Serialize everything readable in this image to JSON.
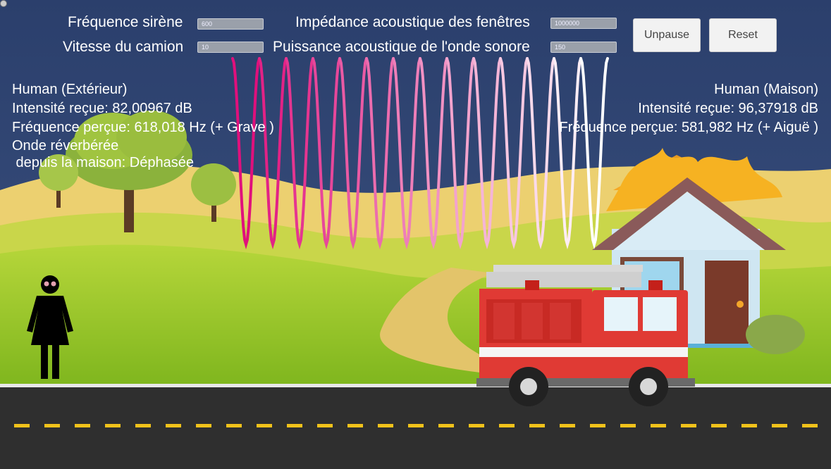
{
  "controls": {
    "siren_frequency": {
      "label": "Fréquence sirène",
      "value": "600"
    },
    "truck_speed": {
      "label": "Vitesse du camion",
      "value": "10"
    },
    "window_impedance": {
      "label": "Impédance acoustique des fenêtres",
      "value": "1000000"
    },
    "wave_power": {
      "label": "Puissance acoustique de l'onde sonore",
      "value": "150"
    }
  },
  "buttons": {
    "unpause": "Unpause",
    "reset": "Reset"
  },
  "human_outside": {
    "title": "Human (Extérieur)",
    "intensity": "Intensité reçue: 82,00967 dB",
    "frequency": "Fréquence perçue: 618,018 Hz (+ Grave  )",
    "reverb_line1": "Onde réverbérée",
    "reverb_line2": " depuis la maison: Déphasée"
  },
  "human_house": {
    "title": "Human (Maison)",
    "intensity": "Intensité reçue: 96,37918 dB",
    "frequency": "Fréquence perçue: 581,982 Hz (+ Aiguë  )"
  },
  "colors": {
    "sky": "#2e4372",
    "hills": "#e8c85c",
    "grass": "#9ccc2c",
    "road": "#2f2f2f",
    "lane_marking": "#f2c21b",
    "truck_red": "#e03a34",
    "wave_start": "#e0107c",
    "wave_end": "#ffffff"
  }
}
